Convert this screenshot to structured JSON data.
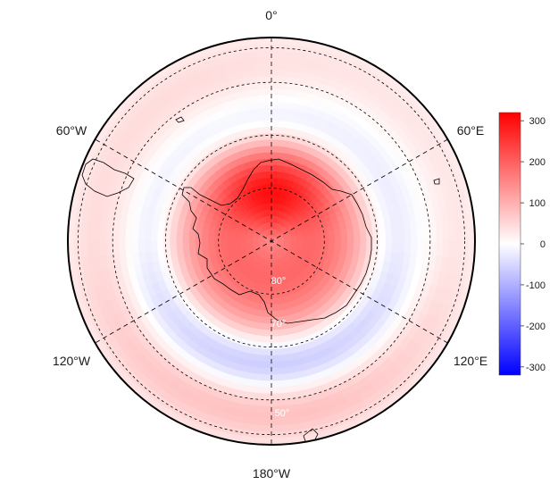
{
  "map": {
    "projection": "south polar stereographic",
    "longitude_labels": [
      "0°",
      "60°E",
      "120°E",
      "180°W",
      "120°W",
      "60°W"
    ],
    "latitude_labels": [
      "80°",
      "70°",
      "50°"
    ],
    "field_description": "anomaly field, positive over Antarctica and eastern sector, negative in a ring near 50-60°S",
    "colors": {
      "negative_max": "#0000ff",
      "zero": "#ffffff",
      "positive_max": "#ff0000",
      "coastline": "#000000",
      "graticule": "#000000"
    }
  },
  "colorbar": {
    "min": -320,
    "max": 320,
    "tick_labels": [
      "300",
      "200",
      "100",
      "0",
      "-100",
      "-200",
      "-300"
    ],
    "tick_values": [
      300,
      200,
      100,
      0,
      -100,
      -200,
      -300
    ]
  }
}
